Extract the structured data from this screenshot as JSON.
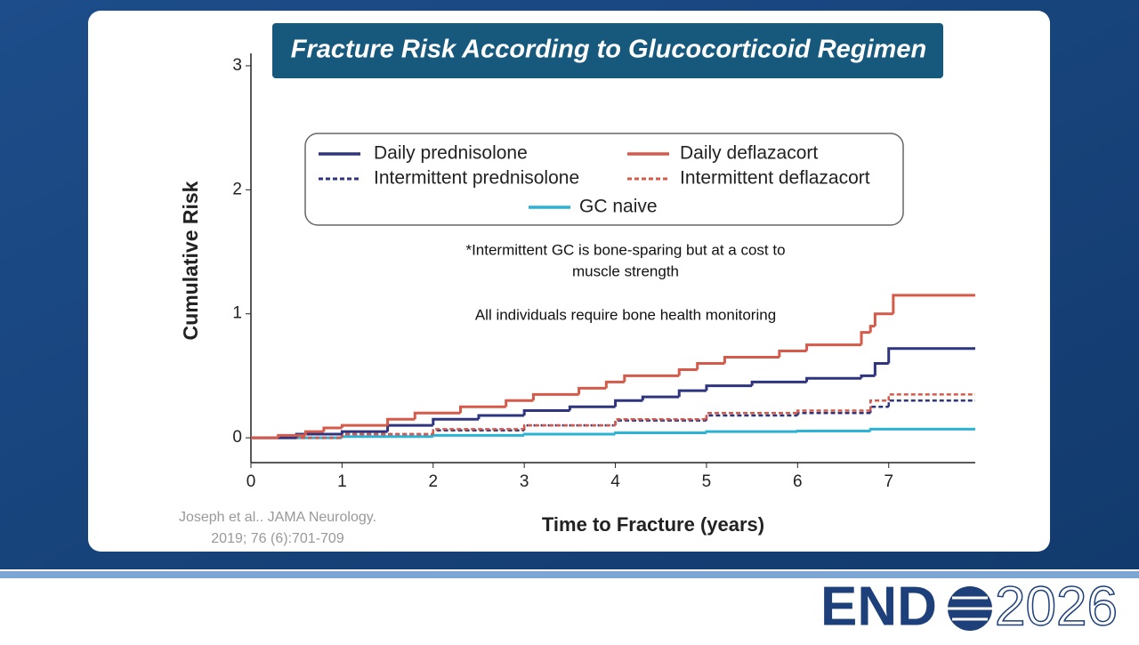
{
  "chart_data": {
    "type": "step",
    "title": "Fracture Risk  According to Glucocorticoid Regimen",
    "y_label": "Cumulative Risk",
    "x_label": "Time to Fracture (years)",
    "xlim": [
      0,
      7.95
    ],
    "ylim": [
      -0.2,
      3.1
    ],
    "xticks": [
      0,
      1,
      2,
      3,
      4,
      5,
      6,
      7
    ],
    "yticks": [
      0,
      1,
      2,
      3
    ],
    "annotations": [
      "*Intermittent GC is bone-sparing but at a cost to",
      "muscle strength",
      "All individuals require bone health monitoring"
    ],
    "citation": [
      "Joseph et al.. JAMA Neurology.",
      "2019; 76 (6):701-709"
    ],
    "series": [
      {
        "name": "Daily prednisolone",
        "color": "#2f347f",
        "dashed": false,
        "x": [
          0,
          0.5,
          1.0,
          1.5,
          2.0,
          2.5,
          3.0,
          3.5,
          4.0,
          4.3,
          4.7,
          5.0,
          5.5,
          6.1,
          6.7,
          6.85,
          7.0,
          7.95
        ],
        "values": [
          0,
          0.03,
          0.05,
          0.1,
          0.15,
          0.18,
          0.22,
          0.25,
          0.3,
          0.33,
          0.38,
          0.42,
          0.45,
          0.48,
          0.5,
          0.6,
          0.72,
          0.72
        ]
      },
      {
        "name": "Daily deflazacort",
        "color": "#d65a4a",
        "dashed": false,
        "x": [
          0,
          0.3,
          0.6,
          0.8,
          1.0,
          1.5,
          1.8,
          2.3,
          2.8,
          3.1,
          3.6,
          3.9,
          4.1,
          4.7,
          4.9,
          5.2,
          5.8,
          6.1,
          6.7,
          6.8,
          6.85,
          7.05,
          7.95
        ],
        "values": [
          0,
          0.02,
          0.05,
          0.08,
          0.1,
          0.15,
          0.2,
          0.25,
          0.3,
          0.35,
          0.4,
          0.45,
          0.5,
          0.55,
          0.6,
          0.65,
          0.7,
          0.75,
          0.85,
          0.9,
          1.0,
          1.15,
          1.15
        ]
      },
      {
        "name": "Intermittent prednisolone",
        "color": "#2f347f",
        "dashed": true,
        "x": [
          0,
          1.0,
          2.0,
          3.0,
          4.0,
          5.0,
          6.0,
          6.8,
          7.0,
          7.95
        ],
        "values": [
          0,
          0.03,
          0.06,
          0.1,
          0.14,
          0.18,
          0.2,
          0.25,
          0.3,
          0.3
        ]
      },
      {
        "name": "Intermittent deflazacort",
        "color": "#d65a4a",
        "dashed": true,
        "x": [
          0,
          1.0,
          2.0,
          3.0,
          4.0,
          5.0,
          6.0,
          6.8,
          7.0,
          7.95
        ],
        "values": [
          0,
          0.03,
          0.07,
          0.1,
          0.15,
          0.2,
          0.22,
          0.3,
          0.35,
          0.35
        ]
      },
      {
        "name": "GC naive",
        "color": "#2bb3d6",
        "dashed": false,
        "x": [
          0,
          1.0,
          2.0,
          3.0,
          4.0,
          5.0,
          6.0,
          6.8,
          7.95
        ],
        "values": [
          0,
          0.01,
          0.02,
          0.03,
          0.04,
          0.05,
          0.055,
          0.07,
          0.07
        ]
      }
    ]
  },
  "footer": {
    "logo_left": "END",
    "logo_right": "2026"
  }
}
